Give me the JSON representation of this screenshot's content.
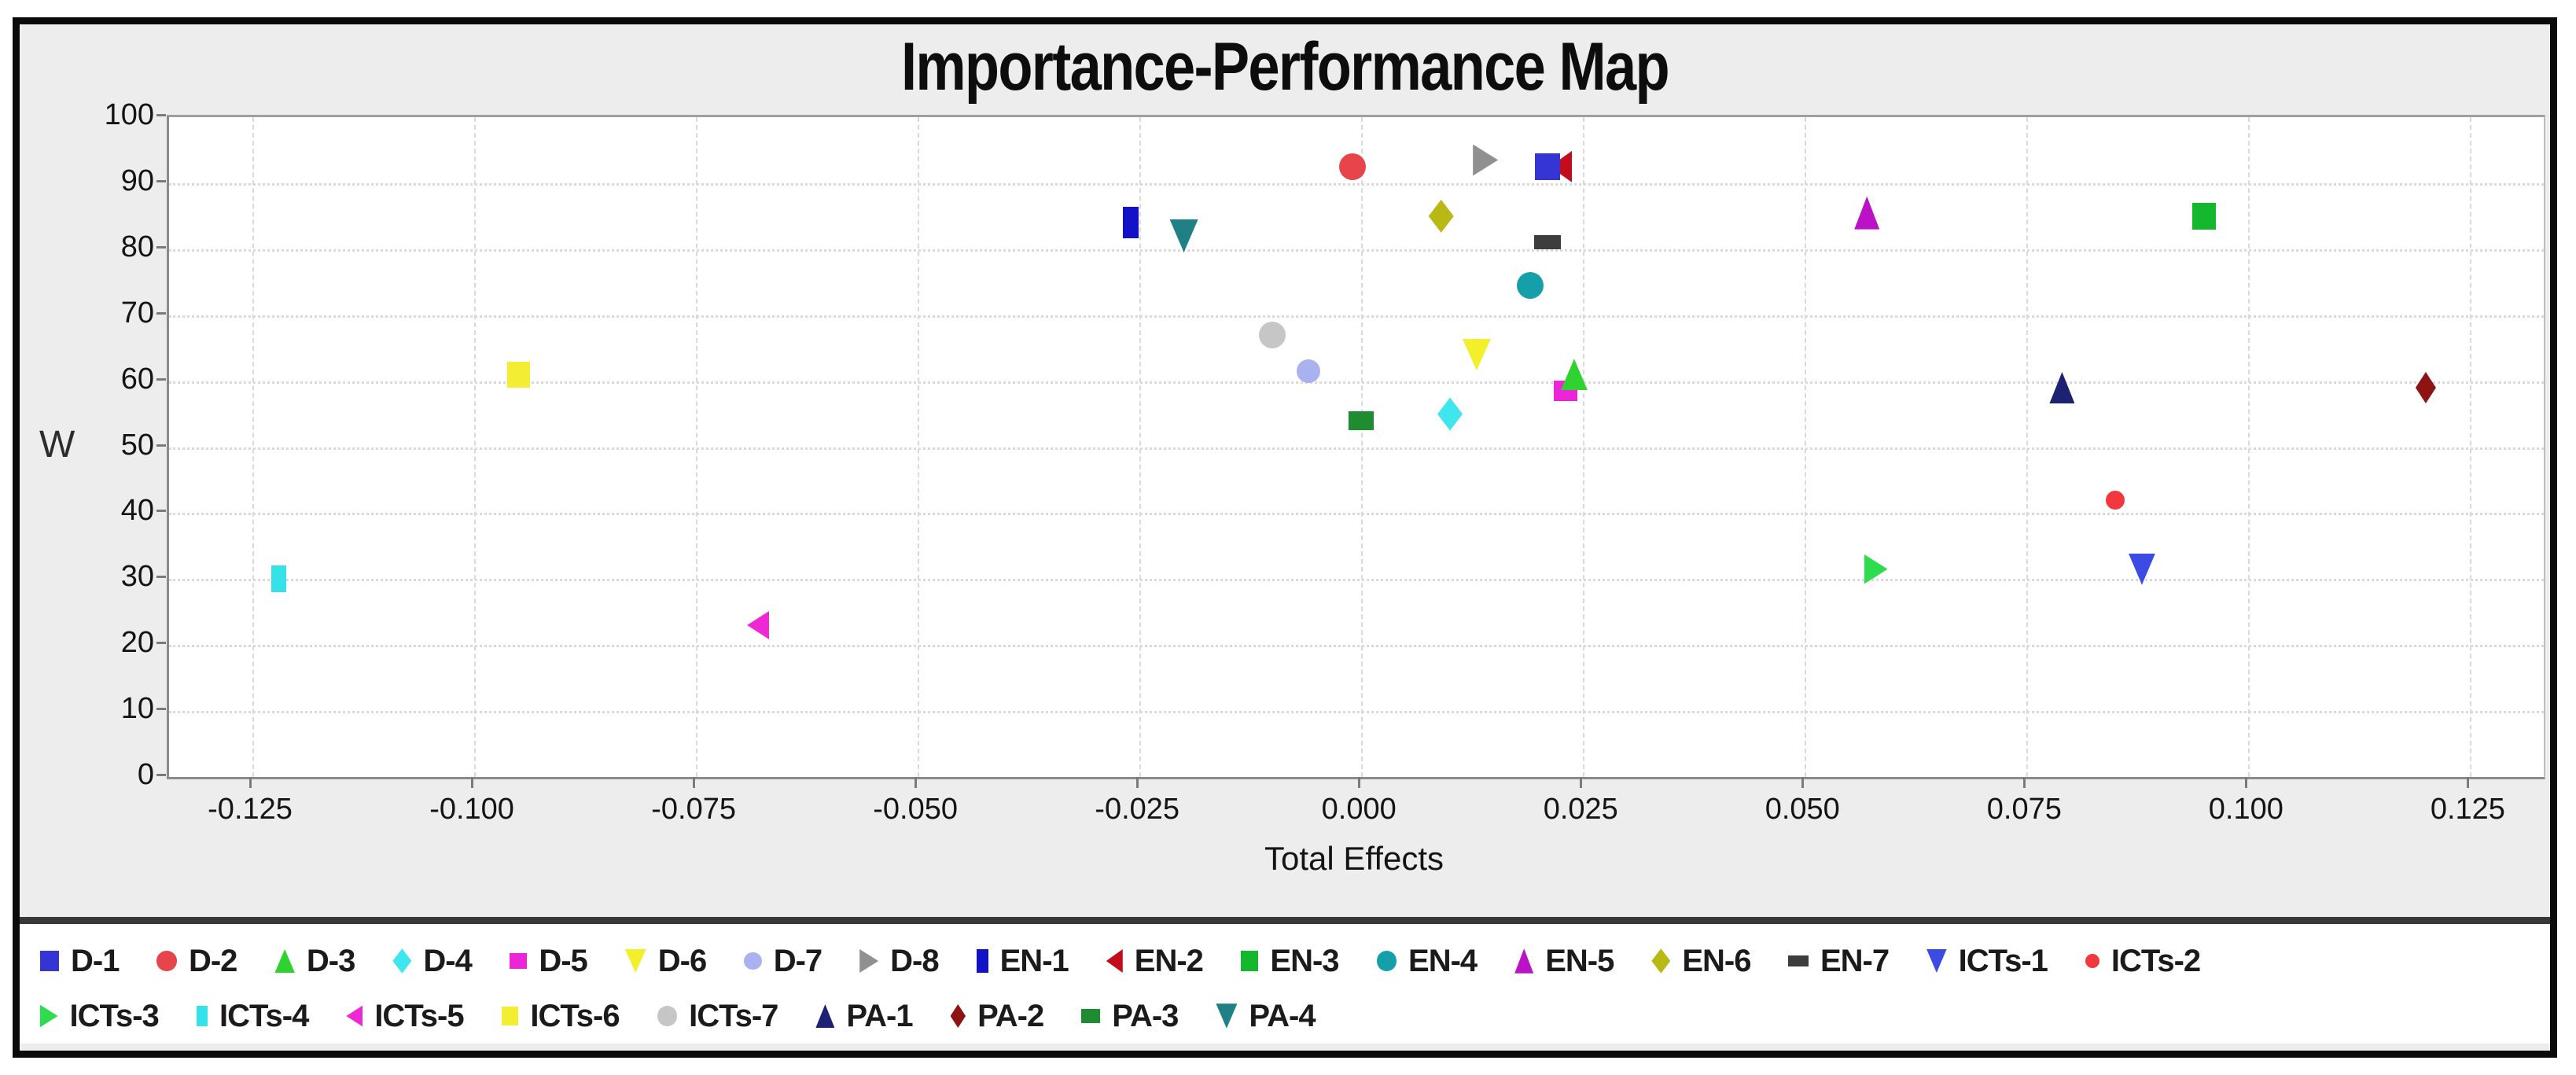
{
  "title": "Importance-Performance Map",
  "axes": {
    "y_label": "W",
    "x_label": "Total Effects",
    "y_ticks": [
      "100",
      "90",
      "80",
      "70",
      "60",
      "50",
      "40",
      "30",
      "20",
      "10",
      "0"
    ],
    "x_ticks": [
      "-0.125",
      "-0.100",
      "-0.075",
      "-0.050",
      "-0.025",
      "0.000",
      "0.025",
      "0.050",
      "0.075",
      "0.100",
      "0.125"
    ]
  },
  "colors": {
    "frame": "#0a0a0a",
    "chart_background": "#ededed",
    "plot_background": "#ffffff",
    "gridline": "#d9d9d9",
    "axis_line": "#8a8a8a",
    "text": "#141414"
  },
  "chart_data": {
    "type": "scatter",
    "title": "Importance-Performance Map",
    "xlabel": "Total Effects",
    "ylabel": "W",
    "xlim": [
      -0.1344,
      0.1333
    ],
    "ylim": [
      0,
      100
    ],
    "x_tick_values": [
      -0.125,
      -0.1,
      -0.075,
      -0.05,
      -0.025,
      0.0,
      0.025,
      0.05,
      0.075,
      0.1,
      0.125
    ],
    "y_tick_values": [
      0,
      10,
      20,
      30,
      40,
      50,
      60,
      70,
      80,
      90,
      100
    ],
    "grid": true,
    "legend_position": "bottom",
    "legend_split_index": 17,
    "points": [
      {
        "name": "D-1",
        "x": 0.021,
        "y": 92.5,
        "marker": "square",
        "color": "#3535d6",
        "size": [
          32,
          34
        ],
        "z": 3
      },
      {
        "name": "D-2",
        "x": -0.001,
        "y": 92.5,
        "marker": "circle",
        "color": "#e8444b",
        "size": [
          34,
          34
        ],
        "z": 1
      },
      {
        "name": "D-3",
        "x": 0.024,
        "y": 61,
        "marker": "up",
        "color": "#2fd32f",
        "size": [
          34,
          40
        ],
        "z": 3
      },
      {
        "name": "D-4",
        "x": 0.01,
        "y": 55,
        "marker": "diamond",
        "color": "#40e6ee",
        "size": [
          32,
          42
        ],
        "z": 1
      },
      {
        "name": "D-5",
        "x": 0.023,
        "y": 58.5,
        "marker": "square",
        "color": "#ec25d8",
        "size": [
          30,
          26
        ],
        "z": 1
      },
      {
        "name": "D-6",
        "x": 0.013,
        "y": 64,
        "marker": "down",
        "color": "#f3ef2b",
        "size": [
          36,
          40
        ],
        "z": 1
      },
      {
        "name": "D-7",
        "x": -0.006,
        "y": 61.5,
        "marker": "circle",
        "color": "#a9b1ef",
        "size": [
          30,
          30
        ],
        "z": 1
      },
      {
        "name": "D-8",
        "x": 0.014,
        "y": 93.5,
        "marker": "right",
        "color": "#909090",
        "size": [
          32,
          40
        ],
        "z": 1
      },
      {
        "name": "EN-1",
        "x": -0.026,
        "y": 84,
        "marker": "square",
        "color": "#1412c9",
        "size": [
          20,
          40
        ],
        "z": 1
      },
      {
        "name": "EN-2",
        "x": 0.0225,
        "y": 92.5,
        "marker": "left",
        "color": "#c30d1d",
        "size": [
          28,
          40
        ],
        "z": 2
      },
      {
        "name": "EN-3",
        "x": 0.095,
        "y": 85,
        "marker": "square",
        "color": "#15b82c",
        "size": [
          30,
          34
        ],
        "z": 1
      },
      {
        "name": "EN-4",
        "x": 0.019,
        "y": 74.5,
        "marker": "circle",
        "color": "#159fa8",
        "size": [
          34,
          34
        ],
        "z": 1
      },
      {
        "name": "EN-5",
        "x": 0.057,
        "y": 85.5,
        "marker": "up",
        "color": "#ba12c4",
        "size": [
          32,
          42
        ],
        "z": 1
      },
      {
        "name": "EN-6",
        "x": 0.009,
        "y": 85,
        "marker": "diamond",
        "color": "#b9b915",
        "size": [
          32,
          42
        ],
        "z": 1
      },
      {
        "name": "EN-7",
        "x": 0.021,
        "y": 81,
        "marker": "square",
        "color": "#3d3d3d",
        "size": [
          34,
          18
        ],
        "z": 1
      },
      {
        "name": "ICTs-1",
        "x": 0.088,
        "y": 31.5,
        "marker": "down",
        "color": "#3b4be4",
        "size": [
          34,
          40
        ],
        "z": 1
      },
      {
        "name": "ICTs-2",
        "x": 0.085,
        "y": 42,
        "marker": "circle",
        "color": "#f2383d",
        "size": [
          24,
          24
        ],
        "z": 1
      },
      {
        "name": "ICTs-3",
        "x": 0.058,
        "y": 31.5,
        "marker": "right",
        "color": "#2edd4d",
        "size": [
          30,
          38
        ],
        "z": 1
      },
      {
        "name": "ICTs-4",
        "x": -0.122,
        "y": 30,
        "marker": "square",
        "color": "#35e2ea",
        "size": [
          19,
          34
        ],
        "z": 1
      },
      {
        "name": "ICTs-5",
        "x": -0.068,
        "y": 23,
        "marker": "left",
        "color": "#ee29d3",
        "size": [
          28,
          36
        ],
        "z": 1
      },
      {
        "name": "ICTs-6",
        "x": -0.095,
        "y": 61,
        "marker": "square",
        "color": "#f4ee33",
        "size": [
          29,
          33
        ],
        "z": 1
      },
      {
        "name": "ICTs-7",
        "x": -0.01,
        "y": 67,
        "marker": "circle",
        "color": "#c6c6c6",
        "size": [
          34,
          34
        ],
        "z": 1
      },
      {
        "name": "PA-1",
        "x": 0.079,
        "y": 59,
        "marker": "up",
        "color": "#1c2173",
        "size": [
          32,
          40
        ],
        "z": 1
      },
      {
        "name": "PA-2",
        "x": 0.12,
        "y": 59,
        "marker": "diamond",
        "color": "#8e1313",
        "size": [
          26,
          40
        ],
        "z": 1
      },
      {
        "name": "PA-3",
        "x": 0.0,
        "y": 54,
        "marker": "square",
        "color": "#1f8c31",
        "size": [
          32,
          24
        ],
        "z": 1
      },
      {
        "name": "PA-4",
        "x": -0.02,
        "y": 82,
        "marker": "down",
        "color": "#1f8186",
        "size": [
          36,
          42
        ],
        "z": 1
      }
    ]
  }
}
